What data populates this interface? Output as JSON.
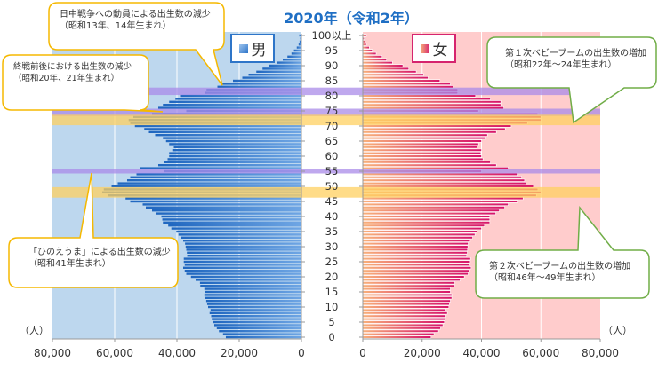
{
  "chart_data": {
    "type": "bar",
    "title": "2020年（令和2年）",
    "unit_label": "（人）",
    "orientation": "population-pyramid",
    "age_tick_labels": [
      "0",
      "5",
      "10",
      "15",
      "20",
      "25",
      "30",
      "35",
      "40",
      "45",
      "50",
      "55",
      "60",
      "65",
      "70",
      "75",
      "80",
      "85",
      "90",
      "95",
      "100以上"
    ],
    "x_tick_labels": [
      "80,000",
      "60,000",
      "40,000",
      "20,000",
      "0",
      "0",
      "20,000",
      "40,000",
      "60,000",
      "80,000"
    ],
    "xlim": [
      0,
      80000
    ],
    "ages": [
      0,
      1,
      2,
      3,
      4,
      5,
      6,
      7,
      8,
      9,
      10,
      11,
      12,
      13,
      14,
      15,
      16,
      17,
      18,
      19,
      20,
      21,
      22,
      23,
      24,
      25,
      26,
      27,
      28,
      29,
      30,
      31,
      32,
      33,
      34,
      35,
      36,
      37,
      38,
      39,
      40,
      41,
      42,
      43,
      44,
      45,
      46,
      47,
      48,
      49,
      50,
      51,
      52,
      53,
      54,
      55,
      56,
      57,
      58,
      59,
      60,
      61,
      62,
      63,
      64,
      65,
      66,
      67,
      68,
      69,
      70,
      71,
      72,
      73,
      74,
      75,
      76,
      77,
      78,
      79,
      80,
      81,
      82,
      83,
      84,
      85,
      86,
      87,
      88,
      89,
      90,
      91,
      92,
      93,
      94,
      95,
      96,
      97,
      98,
      99,
      100
    ],
    "series": [
      {
        "name": "男",
        "color": "#2e75c8",
        "values": [
          24300,
          25200,
          26500,
          27200,
          28000,
          28500,
          28800,
          29000,
          29500,
          29200,
          30000,
          30300,
          30600,
          31000,
          31200,
          31000,
          31200,
          32500,
          32600,
          34000,
          35500,
          37000,
          37500,
          38000,
          37500,
          37800,
          37800,
          36700,
          36800,
          37000,
          37200,
          37400,
          38000,
          38800,
          39500,
          40200,
          41800,
          42800,
          44500,
          44700,
          45000,
          46800,
          48000,
          50000,
          51000,
          55000,
          56500,
          62000,
          64000,
          63500,
          61000,
          59000,
          56000,
          55000,
          53000,
          44000,
          52000,
          46000,
          44000,
          43000,
          42500,
          42500,
          41500,
          41000,
          42500,
          43500,
          44500,
          47000,
          49000,
          50500,
          53500,
          55000,
          55500,
          54000,
          48000,
          37000,
          46000,
          44500,
          42500,
          40500,
          39000,
          31000,
          30500,
          27000,
          25500,
          22000,
          19000,
          17000,
          14500,
          12500,
          10500,
          8000,
          6000,
          4500,
          3200,
          2400,
          1500,
          900,
          600,
          400,
          700
        ]
      },
      {
        "name": "女",
        "color": "#d6246e",
        "values": [
          23000,
          24000,
          25500,
          26200,
          27000,
          27500,
          27800,
          28000,
          28500,
          28000,
          29000,
          29200,
          29500,
          30000,
          30000,
          29500,
          29500,
          31000,
          31000,
          32800,
          34200,
          35500,
          36000,
          36500,
          35800,
          36200,
          36300,
          35000,
          35200,
          35300,
          35400,
          35500,
          36200,
          37000,
          37800,
          38500,
          40000,
          41000,
          42800,
          42800,
          42800,
          44800,
          46000,
          47800,
          49000,
          52000,
          54000,
          58500,
          60000,
          59000,
          57500,
          55000,
          54500,
          53500,
          52000,
          40000,
          49000,
          45000,
          43000,
          40500,
          40000,
          39800,
          40000,
          38500,
          39000,
          40000,
          41500,
          42000,
          45000,
          48000,
          50000,
          55500,
          60000,
          60000,
          59000,
          39000,
          47500,
          46500,
          46500,
          43000,
          38000,
          32000,
          32000,
          30500,
          29500,
          26000,
          22000,
          20500,
          18000,
          15500,
          13500,
          10000,
          8000,
          6500,
          4500,
          3200,
          2200,
          1200,
          800,
          500,
          1200
        ]
      }
    ],
    "highlight_bands": [
      {
        "ages": [
          81,
          82
        ],
        "color": "#a98be8"
      },
      {
        "ages": [
          74,
          75
        ],
        "color": "#a98be8"
      },
      {
        "ages": [
          71,
          73
        ],
        "color": "#ffd060"
      },
      {
        "ages": [
          55,
          55
        ],
        "color": "#a98be8"
      },
      {
        "ages": [
          47,
          49
        ],
        "color": "#ffd060"
      }
    ],
    "legend": {
      "male": "男",
      "female": "女"
    },
    "annotations": [
      {
        "text": "日中戦争への動員による出生数の減少（昭和13年、14年生まれ）"
      },
      {
        "text": "終戦前後における出生数の減少\n（昭和20年、21年生まれ）"
      },
      {
        "text": "「ひのえうま」による出生数の減少\n（昭和41年生まれ）"
      },
      {
        "text": "第１次ベビーブームの出生数の増加\n（昭和22年～24年生まれ）"
      },
      {
        "text": "第２次ベビーブームの出生数の増加\n（昭和46年～49年生まれ）"
      }
    ]
  }
}
